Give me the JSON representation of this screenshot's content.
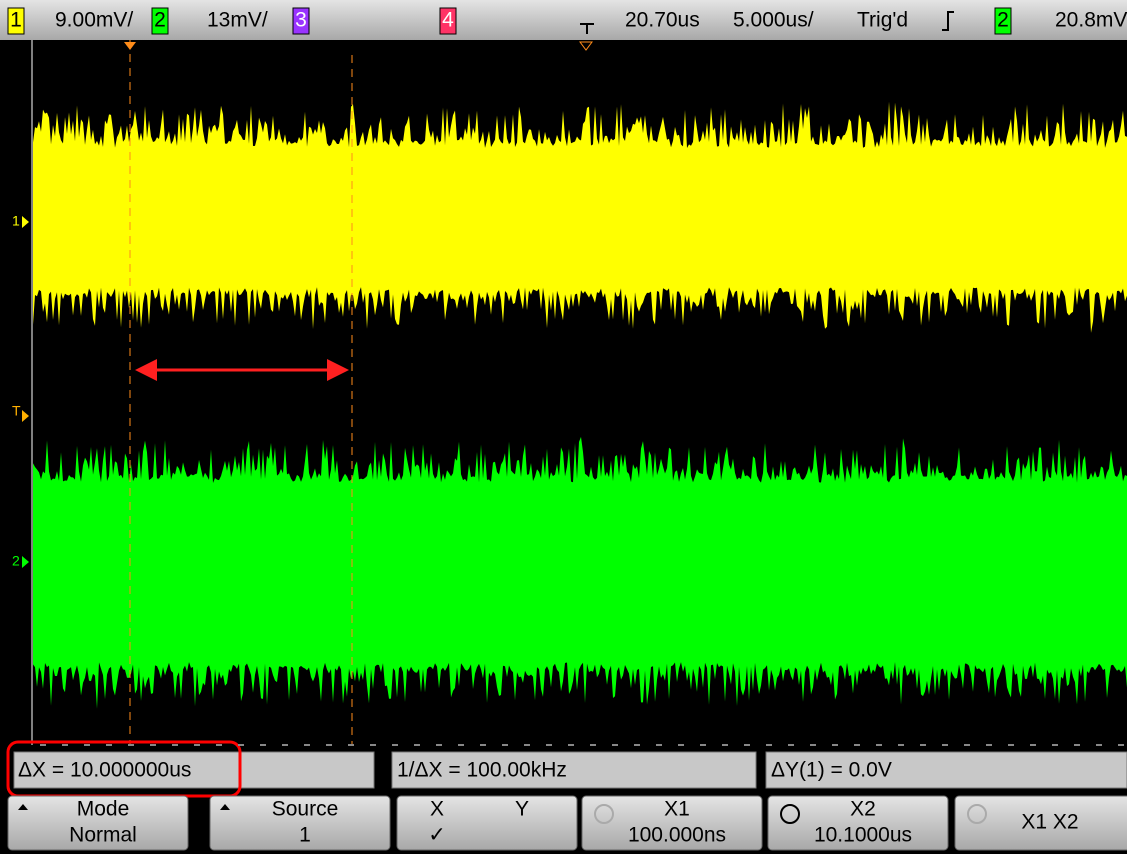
{
  "top_bar": {
    "ch1": {
      "label": "1",
      "scale": "9.00mV/"
    },
    "ch2": {
      "label": "2",
      "scale": "13mV/"
    },
    "ch3": {
      "label": "3"
    },
    "ch4": {
      "label": "4"
    },
    "delay": "20.70us",
    "timebase": "5.000us/",
    "status": "Trig'd",
    "trigger_source": "2",
    "trigger_level": "20.8mV"
  },
  "markers": {
    "ch1": "1",
    "trigger": "T",
    "ch2": "2"
  },
  "readouts": {
    "delta_x": "ΔX = 10.000000us",
    "inverse_delta_x": "1/ΔX = 100.00kHz",
    "delta_y": "ΔY(1) = 0.0V"
  },
  "softkeys": [
    {
      "title": "Mode",
      "value": "Normal"
    },
    {
      "title": "Source",
      "value": "1"
    },
    {
      "title": "X",
      "title2": "Y",
      "value": "✓"
    },
    {
      "title": "X1",
      "value": "100.000ns"
    },
    {
      "title": "X2",
      "value": "10.1000us"
    },
    {
      "title": "X1 X2"
    }
  ]
}
